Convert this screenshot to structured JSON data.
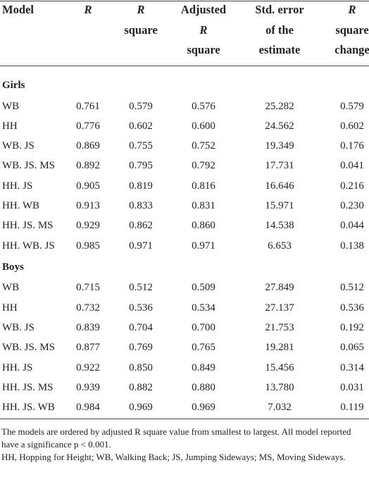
{
  "table": {
    "header": [
      {
        "lines": [
          "Model"
        ]
      },
      {
        "lines": [
          "R"
        ],
        "italic_line": 0
      },
      {
        "lines": [
          "R",
          "square"
        ],
        "italic_line": 0
      },
      {
        "lines": [
          "Adjusted",
          "R",
          "square"
        ],
        "italic_line": 1
      },
      {
        "lines": [
          "Std. error",
          "of the",
          "estimate"
        ]
      },
      {
        "lines": [
          "R",
          "square",
          "change"
        ],
        "italic_line": 0
      }
    ],
    "groups": [
      {
        "label": "Girls",
        "rows": [
          [
            "WB",
            "0.761",
            "0.579",
            "0.576",
            "25.282",
            "0.579"
          ],
          [
            "HH",
            "0.776",
            "0.602",
            "0.600",
            "24.562",
            "0.602"
          ],
          [
            "WB. JS",
            "0.869",
            "0.755",
            "0.752",
            "19.349",
            "0.176"
          ],
          [
            "WB. JS. MS",
            "0.892",
            "0.795",
            "0.792",
            "17.731",
            "0.041"
          ],
          [
            "HH. JS",
            "0.905",
            "0.819",
            "0.816",
            "16.646",
            "0.216"
          ],
          [
            "HH. WB",
            "0.913",
            "0.833",
            "0.831",
            "15.971",
            "0.230"
          ],
          [
            "HH. JS. MS",
            "0.929",
            "0.862",
            "0.860",
            "14.538",
            "0.044"
          ],
          [
            "HH. WB. JS",
            "0.985",
            "0.971",
            "0.971",
            "6.653",
            "0.138"
          ]
        ]
      },
      {
        "label": "Boys",
        "rows": [
          [
            "WB",
            "0.715",
            "0.512",
            "0.509",
            "27.849",
            "0.512"
          ],
          [
            "HH",
            "0.732",
            "0.536",
            "0.534",
            "27.137",
            "0.536"
          ],
          [
            "WB. JS",
            "0.839",
            "0.704",
            "0.700",
            "21.753",
            "0.192"
          ],
          [
            "WB. JS. MS",
            "0.877",
            "0.769",
            "0.765",
            "19.281",
            "0.065"
          ],
          [
            "HH. JS",
            "0.922",
            "0.850",
            "0.849",
            "15.456",
            "0.314"
          ],
          [
            "HH. JS. MS",
            "0.939",
            "0.882",
            "0.880",
            "13.780",
            "0.031"
          ],
          [
            "HH. JS. WB",
            "0.984",
            "0.969",
            "0.969",
            "7.032",
            "0.119"
          ]
        ]
      }
    ]
  },
  "footnotes": [
    "The models are ordered by adjusted R square value from smallest to largest. All model reported have a significance p < 0.001.",
    "HH, Hopping for Height; WB, Walking Back; JS, Jumping Sideways; MS, Moving Sideways."
  ]
}
